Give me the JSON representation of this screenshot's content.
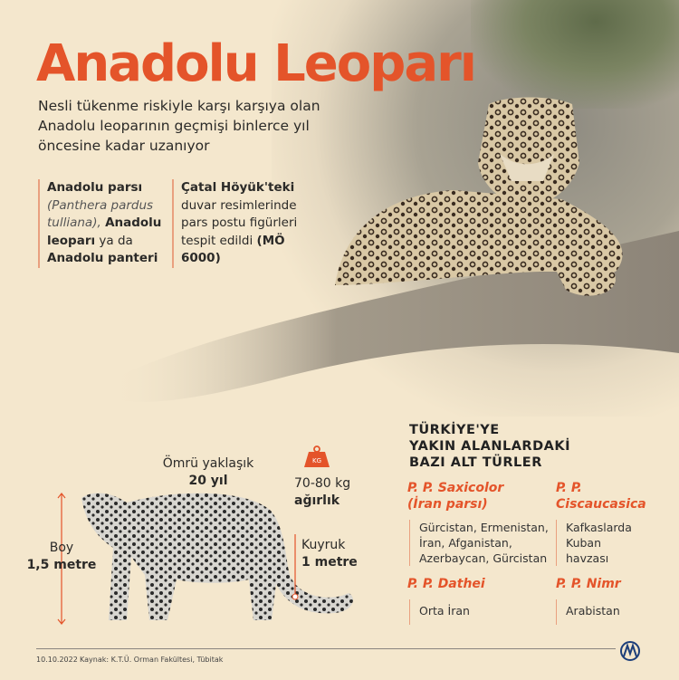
{
  "title": "Anadolu Leoparı",
  "subtitle": "Nesli tükenme riskiyle karşı karşıya olan Anadolu leoparının geçmişi binlerce yıl öncesine kadar uzanıyor",
  "facts": {
    "col1": {
      "b1": "Anadolu parsı",
      "i1": "(Panthera pardus tulliana),",
      "b2": "Anadolu leoparı",
      "t1": "ya da",
      "b3": "Anadolu panteri"
    },
    "col2": {
      "b1": "Çatal Höyük'teki",
      "t1": "duvar resimlerinde pars postu figürleri tespit edildi",
      "b2": "(MÖ 6000)"
    }
  },
  "stats": {
    "life_label": "Ömrü yaklaşık",
    "life_value": "20 yıl",
    "kg_icon": "KG",
    "weight_label": "70-80 kg",
    "weight_value": "ağırlık",
    "tail_label": "Kuyruk",
    "tail_value": "1 metre",
    "boy_label": "Boy",
    "boy_value": "1,5 metre"
  },
  "subspecies": {
    "heading": [
      "TÜRKİYE'YE",
      "YAKIN ALANLARDAKİ",
      "BAZI ALT TÜRLER"
    ],
    "items": [
      {
        "name": "P. P. Saxicolor (İran parsı)",
        "loc": "Gürcistan, Ermenistan, İran, Afganistan, Azerbaycan, Gürcistan"
      },
      {
        "name": "P. P. Ciscaucasica",
        "loc": "Kafkaslarda Kuban havzası"
      },
      {
        "name": "P. P. Dathei",
        "loc": "Orta İran"
      },
      {
        "name": "P. P. Nimr",
        "loc": "Arabistan"
      }
    ]
  },
  "footer": {
    "date": "10.10.2022",
    "source": "Kaynak: K.T.Ü. Orman Fakültesi, Tübitak",
    "logo": "AA"
  },
  "colors": {
    "accent": "#e4542a",
    "background": "#f4e7cd"
  }
}
